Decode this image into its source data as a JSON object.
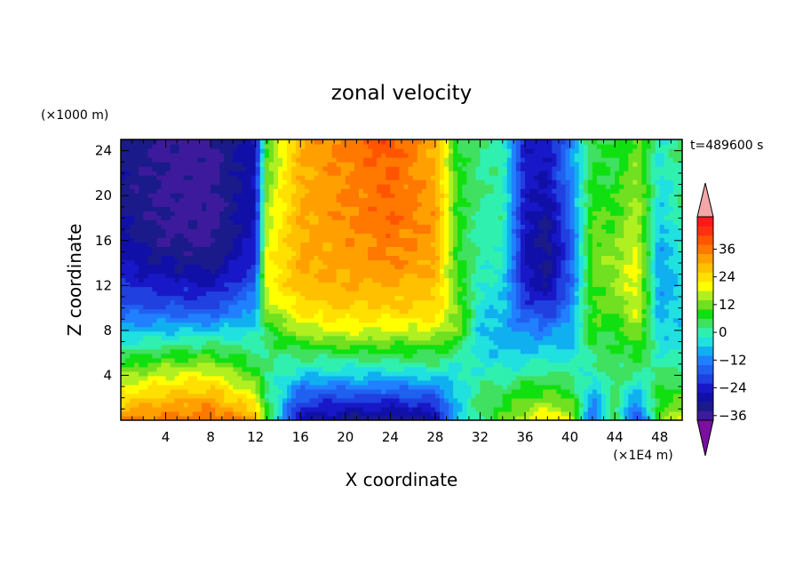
{
  "chart_data": {
    "type": "heatmap",
    "title": "zonal velocity",
    "xlabel": "X coordinate",
    "ylabel": "Z coordinate",
    "x_unit": "(×1E4 m)",
    "y_unit": "(×1000 m)",
    "time_label": "t=489600 s",
    "xlim": [
      0,
      50
    ],
    "ylim": [
      0,
      25
    ],
    "x_ticks": [
      4,
      8,
      12,
      16,
      20,
      24,
      28,
      32,
      36,
      40,
      44,
      48
    ],
    "y_ticks": [
      4,
      8,
      12,
      16,
      20,
      24
    ],
    "x_tick_labels": [
      "4",
      "8",
      "12",
      "16",
      "20",
      "24",
      "28",
      "32",
      "36",
      "40",
      "44",
      "48"
    ],
    "y_tick_labels": [
      "4",
      "8",
      "12",
      "16",
      "20",
      "24"
    ],
    "colorbar": {
      "min": -42,
      "max": 42,
      "step": 4,
      "tick_values": [
        36,
        24,
        12,
        0,
        -12,
        -24,
        -36
      ],
      "tick_labels": [
        "36",
        "24",
        "12",
        "0",
        "−12",
        "−24",
        "−36"
      ],
      "colors": [
        "#7a0fa0",
        "#3d1a9c",
        "#1a1a8a",
        "#1010a8",
        "#1818c8",
        "#2040e0",
        "#2060f0",
        "#2080ff",
        "#10b0f0",
        "#20e0e0",
        "#30f0b0",
        "#40e060",
        "#10e010",
        "#70e020",
        "#b0f020",
        "#ffff00",
        "#ffe000",
        "#ffc000",
        "#ffa000",
        "#ff7800",
        "#ff5500",
        "#ff3010",
        "#ff1818",
        "#f4a7a7"
      ]
    },
    "field": {
      "description": "zonal velocity u(x,z) in m/s",
      "x_grid": [
        0,
        4,
        8,
        12,
        13,
        16,
        20,
        24,
        28,
        30,
        32,
        34,
        36,
        38,
        40,
        42,
        44,
        46,
        48,
        50
      ],
      "z_grid": [
        0,
        2,
        4,
        6,
        8,
        10,
        12,
        14,
        16,
        18,
        20,
        22,
        24,
        25
      ],
      "columns": [
        [
          36,
          24,
          14,
          4,
          -8,
          -16,
          -22,
          -26,
          -28,
          -30,
          -31,
          -31,
          -31,
          -31
        ],
        [
          36,
          28,
          18,
          6,
          -6,
          -18,
          -24,
          -30,
          -34,
          -35,
          -35,
          -35,
          -35,
          -35
        ],
        [
          38,
          30,
          20,
          8,
          -6,
          -18,
          -26,
          -32,
          -35,
          -36,
          -36,
          -36,
          -36,
          -36
        ],
        [
          32,
          20,
          10,
          2,
          -4,
          -10,
          -16,
          -22,
          -24,
          -26,
          -26,
          -26,
          -26,
          -26
        ],
        [
          8,
          4,
          2,
          2,
          6,
          14,
          20,
          20,
          18,
          16,
          14,
          12,
          10,
          10
        ],
        [
          -28,
          -18,
          -6,
          4,
          16,
          24,
          28,
          30,
          30,
          30,
          30,
          30,
          30,
          30
        ],
        [
          -32,
          -20,
          -6,
          6,
          18,
          26,
          30,
          32,
          32,
          34,
          34,
          34,
          36,
          36
        ],
        [
          -34,
          -20,
          -6,
          6,
          18,
          26,
          30,
          34,
          36,
          38,
          38,
          38,
          40,
          42
        ],
        [
          -30,
          -18,
          -4,
          6,
          18,
          24,
          28,
          30,
          32,
          32,
          32,
          30,
          30,
          30
        ],
        [
          -6,
          -6,
          -4,
          2,
          12,
          14,
          10,
          8,
          8,
          8,
          8,
          8,
          6,
          6
        ],
        [
          2,
          4,
          0,
          -4,
          -6,
          -4,
          -2,
          0,
          0,
          0,
          2,
          2,
          2,
          2
        ],
        [
          10,
          6,
          0,
          -6,
          -8,
          -6,
          -4,
          -2,
          0,
          0,
          0,
          0,
          0,
          0
        ],
        [
          18,
          10,
          2,
          -6,
          -12,
          -18,
          -24,
          -26,
          -26,
          -26,
          -24,
          -24,
          -24,
          -24
        ],
        [
          24,
          12,
          4,
          -4,
          -12,
          -22,
          -30,
          -32,
          -32,
          -30,
          -28,
          -26,
          -26,
          -26
        ],
        [
          18,
          10,
          2,
          -6,
          -8,
          -12,
          -16,
          -18,
          -18,
          -16,
          -14,
          -12,
          -12,
          -12
        ],
        [
          -16,
          -10,
          -2,
          4,
          8,
          10,
          10,
          12,
          12,
          10,
          8,
          6,
          6,
          6
        ],
        [
          6,
          4,
          4,
          4,
          6,
          12,
          14,
          14,
          12,
          10,
          8,
          6,
          6,
          6
        ],
        [
          -20,
          -10,
          0,
          8,
          14,
          18,
          20,
          20,
          18,
          16,
          16,
          14,
          12,
          12
        ],
        [
          10,
          8,
          4,
          -2,
          -6,
          -8,
          -10,
          -10,
          -8,
          -6,
          -4,
          -4,
          -2,
          -2
        ],
        [
          20,
          10,
          4,
          -2,
          -4,
          -4,
          -4,
          -2,
          -2,
          0,
          2,
          2,
          4,
          4
        ]
      ]
    }
  }
}
